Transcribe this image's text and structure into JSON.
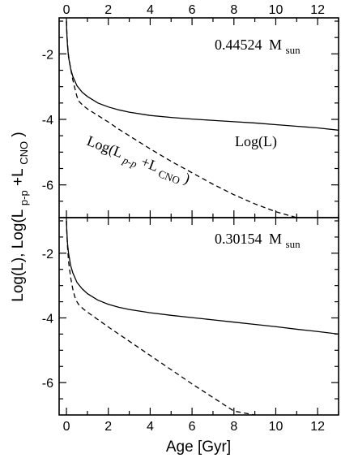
{
  "chart_data": {
    "type": "line",
    "xlabel": "Age [Gyr]",
    "ylabel": "Log(L), Log(Lp-p+LCNO)",
    "ylabel_parts": [
      "Log(L), Log(L",
      "p-p",
      "+L",
      "CNO",
      ")"
    ],
    "xlim": [
      -0.35,
      13
    ],
    "x_ticks": [
      0,
      2,
      4,
      6,
      8,
      10,
      12
    ],
    "y_ticks": [
      -2,
      -4,
      -6
    ],
    "panels": [
      {
        "position": "top",
        "ylim": [
          -7,
          -0.9
        ],
        "annotation": {
          "mass": "0.44524",
          "unit": "M",
          "subscript": "sun"
        },
        "curve_labels": {
          "total": "Log(L)",
          "nuclear_parts": [
            "Log(L",
            "p-p",
            "+L",
            "CNO",
            ")"
          ]
        },
        "series": [
          {
            "name": "Log(L)",
            "style": "solid",
            "x": [
              0.0,
              0.02,
              0.05,
              0.1,
              0.2,
              0.3,
              0.5,
              0.75,
              1.0,
              1.5,
              2.0,
              2.5,
              3.0,
              4.0,
              5.0,
              6.0,
              7.0,
              8.0,
              9.0,
              10.0,
              11.0,
              12.0,
              13.0
            ],
            "y": [
              -1.0,
              -1.4,
              -1.75,
              -2.1,
              -2.45,
              -2.68,
              -2.97,
              -3.17,
              -3.3,
              -3.5,
              -3.62,
              -3.71,
              -3.78,
              -3.88,
              -3.94,
              -3.99,
              -4.03,
              -4.07,
              -4.11,
              -4.16,
              -4.21,
              -4.26,
              -4.33
            ]
          },
          {
            "name": "Log(Lp-p+LCNO)",
            "style": "dashed",
            "x": [
              0.0,
              0.02,
              0.05,
              0.1,
              0.2,
              0.3,
              0.4,
              0.5,
              0.6,
              0.8,
              1.0,
              1.5,
              2.0,
              2.5,
              3.0,
              4.0,
              5.0,
              6.0,
              7.0,
              8.0,
              9.0,
              10.0,
              11.0
            ],
            "y": [
              -1.0,
              -1.35,
              -1.7,
              -2.05,
              -2.45,
              -2.78,
              -3.05,
              -3.3,
              -3.45,
              -3.58,
              -3.68,
              -3.88,
              -4.08,
              -4.3,
              -4.5,
              -4.9,
              -5.28,
              -5.63,
              -5.98,
              -6.3,
              -6.58,
              -6.82,
              -7.0
            ]
          }
        ]
      },
      {
        "position": "bottom",
        "ylim": [
          -7,
          -0.9
        ],
        "annotation": {
          "mass": "0.30154",
          "unit": "M",
          "subscript": "sun"
        },
        "series": [
          {
            "name": "Log(L)",
            "style": "solid",
            "x": [
              0.0,
              0.02,
              0.05,
              0.1,
              0.2,
              0.3,
              0.5,
              0.75,
              1.0,
              1.5,
              2.0,
              2.5,
              3.0,
              4.0,
              5.0,
              6.0,
              7.0,
              8.0,
              9.0,
              10.0,
              11.0,
              12.0,
              13.0
            ],
            "y": [
              -1.0,
              -1.35,
              -1.7,
              -2.0,
              -2.38,
              -2.6,
              -2.9,
              -3.1,
              -3.25,
              -3.45,
              -3.58,
              -3.67,
              -3.74,
              -3.84,
              -3.92,
              -3.99,
              -4.06,
              -4.13,
              -4.2,
              -4.27,
              -4.35,
              -4.42,
              -4.5
            ]
          },
          {
            "name": "Log(Lp-p+LCNO)",
            "style": "dashed",
            "x": [
              0.0,
              0.02,
              0.05,
              0.1,
              0.2,
              0.3,
              0.4,
              0.5,
              0.6,
              0.8,
              1.0,
              1.5,
              2.0,
              3.0,
              4.0,
              5.0,
              6.0,
              7.0,
              8.0,
              9.0
            ],
            "y": [
              -1.0,
              -1.4,
              -1.8,
              -2.25,
              -2.75,
              -3.1,
              -3.35,
              -3.5,
              -3.6,
              -3.72,
              -3.82,
              -4.05,
              -4.28,
              -4.72,
              -5.16,
              -5.6,
              -6.04,
              -6.46,
              -6.88,
              -7.0
            ]
          }
        ]
      }
    ]
  }
}
